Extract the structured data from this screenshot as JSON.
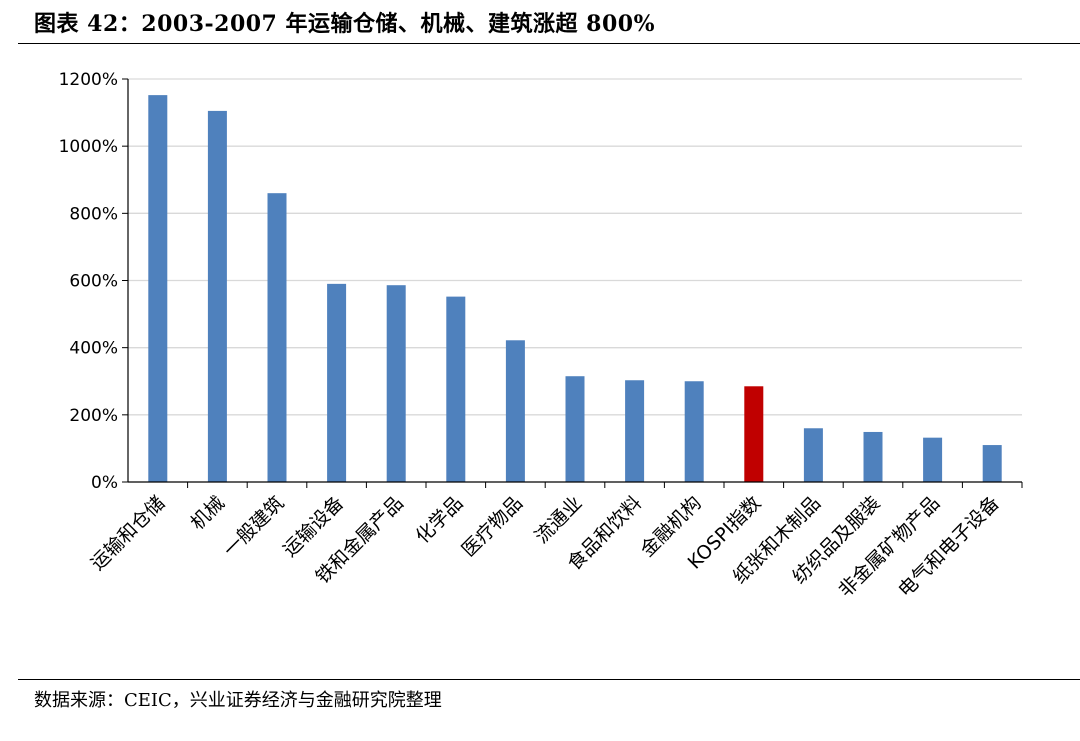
{
  "figure": {
    "title": "图表 42：2003-2007 年运输仓储、机械、建筑涨超 800%",
    "source": "数据来源：CEIC，兴业证券经济与金融研究院整理"
  },
  "colors": {
    "bar": "#4f81bd",
    "highlight": "#c00000",
    "grid": "#d9d9d9",
    "axis": "#000000"
  },
  "chart_data": {
    "type": "bar",
    "categories": [
      "运输和仓储",
      "机械",
      "一般建筑",
      "运输设备",
      "铁和金属产品",
      "化学品",
      "医疗物品",
      "流通业",
      "食品和饮料",
      "金融机构",
      "KOSPI指数",
      "纸张和木制品",
      "纺织品及服装",
      "非金属矿物产品",
      "电气和电子设备"
    ],
    "values": [
      1152,
      1105,
      860,
      590,
      586,
      552,
      422,
      315,
      303,
      300,
      285,
      160,
      149,
      132,
      110
    ],
    "highlight_category": "KOSPI指数",
    "ylim": [
      0,
      1200
    ],
    "yticks": [
      0,
      200,
      400,
      600,
      800,
      1000,
      1200
    ],
    "ytick_labels": [
      "0%",
      "200%",
      "400%",
      "600%",
      "800%",
      "1000%",
      "1200%"
    ],
    "grid": true,
    "legend": "none",
    "xlabel": "",
    "ylabel": ""
  }
}
